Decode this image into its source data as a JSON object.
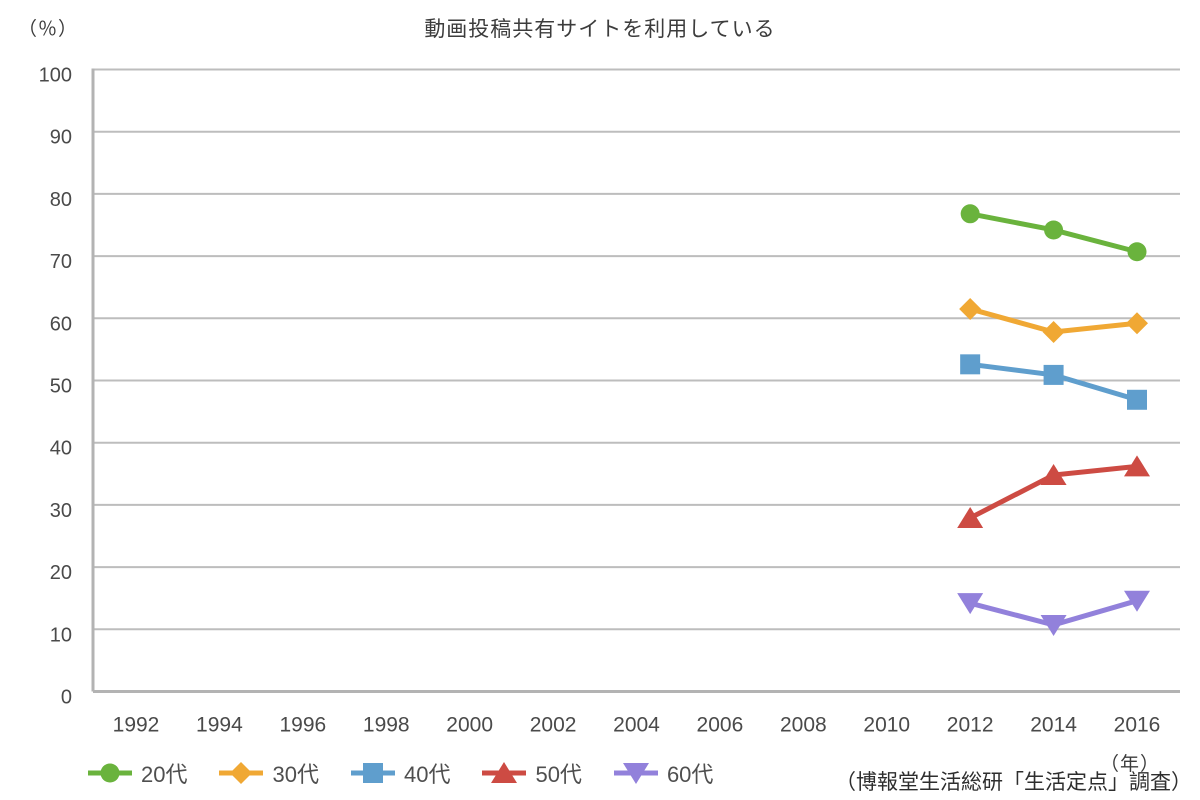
{
  "title": "動画投稿共有サイトを利用している",
  "y_axis_unit": "（％）",
  "x_axis_unit": "（年）",
  "source": "（博報堂生活総研「生活定点」調査）",
  "colors": {
    "grid": "#bdbdbd",
    "axis": "#b3b3b3",
    "tick_text": "#4a4a4a"
  },
  "chart_data": {
    "type": "line",
    "title": "動画投稿共有サイトを利用している",
    "ylabel": "（％）",
    "xlabel": "（年）",
    "ylim": [
      0,
      100
    ],
    "y_ticks": [
      0,
      10,
      20,
      30,
      40,
      50,
      60,
      70,
      80,
      90,
      100
    ],
    "x_ticks": [
      1992,
      1994,
      1996,
      1998,
      2000,
      2002,
      2004,
      2006,
      2008,
      2010,
      2012,
      2014,
      2016
    ],
    "x": [
      2012,
      2014,
      2016
    ],
    "grid": "horizontal",
    "legend_position": "bottom-left",
    "series": [
      {
        "name": "20代",
        "marker": "circle",
        "color": "#6ab33d",
        "values": [
          76.8,
          74.2,
          70.7
        ]
      },
      {
        "name": "30代",
        "marker": "diamond",
        "color": "#f0a834",
        "values": [
          61.5,
          57.8,
          59.2
        ]
      },
      {
        "name": "40代",
        "marker": "square",
        "color": "#5f9ecd",
        "values": [
          52.6,
          50.9,
          46.9
        ]
      },
      {
        "name": "50代",
        "marker": "triangle-up",
        "color": "#cd4b43",
        "values": [
          27.9,
          34.8,
          36.2
        ]
      },
      {
        "name": "60代",
        "marker": "triangle-down",
        "color": "#9281db",
        "values": [
          14.2,
          10.7,
          14.6
        ]
      }
    ]
  }
}
